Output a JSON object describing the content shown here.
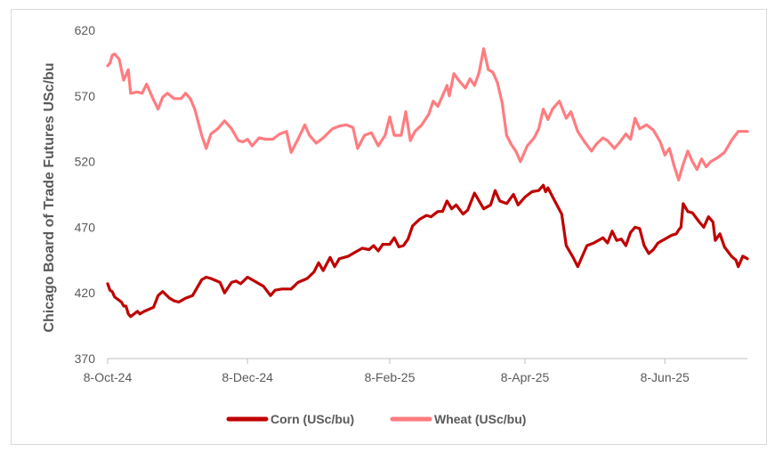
{
  "chart_data": {
    "type": "line",
    "title": "",
    "xlabel": "",
    "ylabel": "Chicago Board of Trade Futures  USc/bu",
    "ylim": [
      370,
      620
    ],
    "yticks": [
      "370",
      "420",
      "470",
      "520",
      "570",
      "620"
    ],
    "xlim": [
      "2024-10-08",
      "2025-07-14"
    ],
    "xticks": [
      {
        "date": "2024-10-08",
        "label": "8-Oct-24"
      },
      {
        "date": "2024-12-08",
        "label": "8-Dec-24"
      },
      {
        "date": "2025-02-08",
        "label": "8-Feb-25"
      },
      {
        "date": "2025-04-08",
        "label": "8-Apr-25"
      },
      {
        "date": "2025-06-08",
        "label": "8-Jun-25"
      }
    ],
    "grid": false,
    "legend_position": "bottom",
    "series": [
      {
        "name": "Corn (USc/bu)",
        "color": "#c00000",
        "points": [
          [
            "2024-10-08",
            427
          ],
          [
            "2024-10-09",
            422
          ],
          [
            "2024-10-10",
            421
          ],
          [
            "2024-10-11",
            417
          ],
          [
            "2024-10-14",
            413
          ],
          [
            "2024-10-15",
            410
          ],
          [
            "2024-10-16",
            410
          ],
          [
            "2024-10-17",
            404
          ],
          [
            "2024-10-18",
            402
          ],
          [
            "2024-10-21",
            406
          ],
          [
            "2024-10-22",
            404
          ],
          [
            "2024-10-24",
            406
          ],
          [
            "2024-10-28",
            409
          ],
          [
            "2024-10-30",
            418
          ],
          [
            "2024-11-01",
            421
          ],
          [
            "2024-11-04",
            416
          ],
          [
            "2024-11-06",
            414
          ],
          [
            "2024-11-08",
            413
          ],
          [
            "2024-11-11",
            416
          ],
          [
            "2024-11-14",
            418
          ],
          [
            "2024-11-18",
            430
          ],
          [
            "2024-11-20",
            432
          ],
          [
            "2024-11-22",
            431
          ],
          [
            "2024-11-26",
            428
          ],
          [
            "2024-11-28",
            420
          ],
          [
            "2024-12-01",
            428
          ],
          [
            "2024-12-03",
            429
          ],
          [
            "2024-12-05",
            427
          ],
          [
            "2024-12-08",
            432
          ],
          [
            "2024-12-12",
            428
          ],
          [
            "2024-12-15",
            425
          ],
          [
            "2024-12-18",
            418
          ],
          [
            "2024-12-20",
            422
          ],
          [
            "2024-12-23",
            423
          ],
          [
            "2024-12-27",
            423
          ],
          [
            "2024-12-30",
            428
          ],
          [
            "2025-01-03",
            431
          ],
          [
            "2025-01-06",
            436
          ],
          [
            "2025-01-08",
            443
          ],
          [
            "2025-01-10",
            437
          ],
          [
            "2025-01-13",
            447
          ],
          [
            "2025-01-15",
            440
          ],
          [
            "2025-01-17",
            446
          ],
          [
            "2025-01-21",
            448
          ],
          [
            "2025-01-24",
            451
          ],
          [
            "2025-01-27",
            454
          ],
          [
            "2025-01-30",
            453
          ],
          [
            "2025-02-01",
            456
          ],
          [
            "2025-02-03",
            452
          ],
          [
            "2025-02-05",
            457
          ],
          [
            "2025-02-08",
            457
          ],
          [
            "2025-02-10",
            462
          ],
          [
            "2025-02-12",
            455
          ],
          [
            "2025-02-14",
            456
          ],
          [
            "2025-02-16",
            461
          ],
          [
            "2025-02-18",
            471
          ],
          [
            "2025-02-21",
            476
          ],
          [
            "2025-02-24",
            479
          ],
          [
            "2025-02-26",
            478
          ],
          [
            "2025-03-01",
            482
          ],
          [
            "2025-03-03",
            482
          ],
          [
            "2025-03-05",
            490
          ],
          [
            "2025-03-07",
            484
          ],
          [
            "2025-03-09",
            487
          ],
          [
            "2025-03-12",
            480
          ],
          [
            "2025-03-14",
            483
          ],
          [
            "2025-03-17",
            496
          ],
          [
            "2025-03-19",
            490
          ],
          [
            "2025-03-21",
            484
          ],
          [
            "2025-03-24",
            487
          ],
          [
            "2025-03-26",
            498
          ],
          [
            "2025-03-28",
            490
          ],
          [
            "2025-03-31",
            488
          ],
          [
            "2025-04-03",
            495
          ],
          [
            "2025-04-05",
            487
          ],
          [
            "2025-04-08",
            493
          ],
          [
            "2025-04-11",
            497
          ],
          [
            "2025-04-14",
            498
          ],
          [
            "2025-04-16",
            502
          ],
          [
            "2025-04-17",
            497
          ],
          [
            "2025-04-18",
            500
          ],
          [
            "2025-04-21",
            490
          ],
          [
            "2025-04-24",
            480
          ],
          [
            "2025-04-26",
            456
          ],
          [
            "2025-04-29",
            447
          ],
          [
            "2025-05-01",
            440
          ],
          [
            "2025-05-03",
            448
          ],
          [
            "2025-05-05",
            456
          ],
          [
            "2025-05-08",
            458
          ],
          [
            "2025-05-10",
            460
          ],
          [
            "2025-05-12",
            462
          ],
          [
            "2025-05-14",
            458
          ],
          [
            "2025-05-16",
            467
          ],
          [
            "2025-05-18",
            460
          ],
          [
            "2025-05-20",
            461
          ],
          [
            "2025-05-22",
            456
          ],
          [
            "2025-05-24",
            466
          ],
          [
            "2025-05-26",
            470
          ],
          [
            "2025-05-28",
            469
          ],
          [
            "2025-05-30",
            456
          ],
          [
            "2025-06-01",
            450
          ],
          [
            "2025-06-03",
            453
          ],
          [
            "2025-06-05",
            458
          ],
          [
            "2025-06-07",
            460
          ],
          [
            "2025-06-09",
            462
          ],
          [
            "2025-06-11",
            464
          ],
          [
            "2025-06-13",
            465
          ],
          [
            "2025-06-14",
            468
          ],
          [
            "2025-06-15",
            470
          ],
          [
            "2025-06-16",
            488
          ],
          [
            "2025-06-17",
            485
          ],
          [
            "2025-06-18",
            482
          ],
          [
            "2025-06-20",
            481
          ],
          [
            "2025-06-23",
            474
          ],
          [
            "2025-06-25",
            470
          ],
          [
            "2025-06-27",
            478
          ],
          [
            "2025-06-29",
            474
          ],
          [
            "2025-06-30",
            460
          ],
          [
            "2025-07-02",
            465
          ],
          [
            "2025-07-04",
            455
          ],
          [
            "2025-07-07",
            448
          ],
          [
            "2025-07-09",
            445
          ],
          [
            "2025-07-10",
            440
          ],
          [
            "2025-07-12",
            448
          ],
          [
            "2025-07-14",
            446
          ]
        ]
      },
      {
        "name": "Wheat (USc/bu)",
        "color": "#ff7c80",
        "points": [
          [
            "2024-10-08",
            593
          ],
          [
            "2024-10-09",
            595
          ],
          [
            "2024-10-10",
            601
          ],
          [
            "2024-10-11",
            602
          ],
          [
            "2024-10-13",
            598
          ],
          [
            "2024-10-15",
            582
          ],
          [
            "2024-10-17",
            590
          ],
          [
            "2024-10-18",
            572
          ],
          [
            "2024-10-21",
            573
          ],
          [
            "2024-10-23",
            572
          ],
          [
            "2024-10-25",
            579
          ],
          [
            "2024-10-28",
            567
          ],
          [
            "2024-10-30",
            560
          ],
          [
            "2024-11-01",
            569
          ],
          [
            "2024-11-03",
            572
          ],
          [
            "2024-11-06",
            568
          ],
          [
            "2024-11-09",
            568
          ],
          [
            "2024-11-11",
            572
          ],
          [
            "2024-11-13",
            568
          ],
          [
            "2024-11-15",
            560
          ],
          [
            "2024-11-18",
            540
          ],
          [
            "2024-11-20",
            530
          ],
          [
            "2024-11-22",
            541
          ],
          [
            "2024-11-25",
            545
          ],
          [
            "2024-11-28",
            551
          ],
          [
            "2024-12-01",
            545
          ],
          [
            "2024-12-04",
            536
          ],
          [
            "2024-12-06",
            535
          ],
          [
            "2024-12-08",
            537
          ],
          [
            "2024-12-10",
            532
          ],
          [
            "2024-12-13",
            538
          ],
          [
            "2024-12-16",
            537
          ],
          [
            "2024-12-19",
            537
          ],
          [
            "2024-12-22",
            541
          ],
          [
            "2024-12-25",
            543
          ],
          [
            "2024-12-27",
            527
          ],
          [
            "2024-12-30",
            537
          ],
          [
            "2025-01-02",
            548
          ],
          [
            "2025-01-04",
            540
          ],
          [
            "2025-01-07",
            534
          ],
          [
            "2025-01-10",
            538
          ],
          [
            "2025-01-14",
            545
          ],
          [
            "2025-01-17",
            547
          ],
          [
            "2025-01-20",
            548
          ],
          [
            "2025-01-23",
            546
          ],
          [
            "2025-01-25",
            530
          ],
          [
            "2025-01-28",
            540
          ],
          [
            "2025-01-31",
            542
          ],
          [
            "2025-02-03",
            532
          ],
          [
            "2025-02-06",
            540
          ],
          [
            "2025-02-08",
            554
          ],
          [
            "2025-02-10",
            540
          ],
          [
            "2025-02-13",
            540
          ],
          [
            "2025-02-15",
            558
          ],
          [
            "2025-02-17",
            536
          ],
          [
            "2025-02-19",
            543
          ],
          [
            "2025-02-22",
            548
          ],
          [
            "2025-02-25",
            556
          ],
          [
            "2025-02-27",
            566
          ],
          [
            "2025-03-01",
            562
          ],
          [
            "2025-03-03",
            570
          ],
          [
            "2025-03-05",
            578
          ],
          [
            "2025-03-06",
            570
          ],
          [
            "2025-03-08",
            587
          ],
          [
            "2025-03-10",
            582
          ],
          [
            "2025-03-13",
            576
          ],
          [
            "2025-03-15",
            583
          ],
          [
            "2025-03-17",
            578
          ],
          [
            "2025-03-19",
            588
          ],
          [
            "2025-03-21",
            606
          ],
          [
            "2025-03-23",
            590
          ],
          [
            "2025-03-25",
            588
          ],
          [
            "2025-03-27",
            580
          ],
          [
            "2025-03-29",
            565
          ],
          [
            "2025-03-31",
            540
          ],
          [
            "2025-04-02",
            533
          ],
          [
            "2025-04-04",
            528
          ],
          [
            "2025-04-06",
            520
          ],
          [
            "2025-04-09",
            532
          ],
          [
            "2025-04-12",
            538
          ],
          [
            "2025-04-14",
            545
          ],
          [
            "2025-04-16",
            560
          ],
          [
            "2025-04-18",
            552
          ],
          [
            "2025-04-20",
            560
          ],
          [
            "2025-04-23",
            566
          ],
          [
            "2025-04-26",
            553
          ],
          [
            "2025-04-28",
            558
          ],
          [
            "2025-05-01",
            543
          ],
          [
            "2025-05-04",
            535
          ],
          [
            "2025-05-07",
            528
          ],
          [
            "2025-05-09",
            533
          ],
          [
            "2025-05-12",
            538
          ],
          [
            "2025-05-14",
            536
          ],
          [
            "2025-05-17",
            530
          ],
          [
            "2025-05-19",
            534
          ],
          [
            "2025-05-22",
            541
          ],
          [
            "2025-05-24",
            537
          ],
          [
            "2025-05-26",
            553
          ],
          [
            "2025-05-28",
            545
          ],
          [
            "2025-05-31",
            548
          ],
          [
            "2025-06-03",
            544
          ],
          [
            "2025-06-06",
            535
          ],
          [
            "2025-06-08",
            525
          ],
          [
            "2025-06-10",
            530
          ],
          [
            "2025-06-12",
            517
          ],
          [
            "2025-06-14",
            506
          ],
          [
            "2025-06-16",
            518
          ],
          [
            "2025-06-18",
            528
          ],
          [
            "2025-06-20",
            520
          ],
          [
            "2025-06-22",
            514
          ],
          [
            "2025-06-24",
            522
          ],
          [
            "2025-06-26",
            516
          ],
          [
            "2025-06-28",
            520
          ],
          [
            "2025-07-01",
            523
          ],
          [
            "2025-07-04",
            527
          ],
          [
            "2025-07-07",
            536
          ],
          [
            "2025-07-10",
            543
          ],
          [
            "2025-07-12",
            543
          ],
          [
            "2025-07-14",
            543
          ]
        ]
      }
    ]
  }
}
